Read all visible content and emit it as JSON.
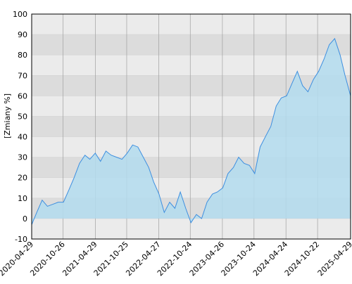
{
  "chart_data": {
    "type": "area",
    "ylabel": "[Zmiany %]",
    "x": [
      "2020-04-29",
      "2020-05-28",
      "2020-06-28",
      "2020-07-28",
      "2020-08-28",
      "2020-09-28",
      "2020-10-28",
      "2020-11-28",
      "2020-12-28",
      "2021-01-28",
      "2021-02-28",
      "2021-03-28",
      "2021-04-28",
      "2021-05-28",
      "2021-06-28",
      "2021-07-28",
      "2021-08-28",
      "2021-09-28",
      "2021-10-28",
      "2021-11-28",
      "2021-12-28",
      "2022-01-28",
      "2022-02-28",
      "2022-03-28",
      "2022-04-28",
      "2022-05-28",
      "2022-06-28",
      "2022-07-28",
      "2022-08-28",
      "2022-09-28",
      "2022-10-28",
      "2022-11-28",
      "2022-12-28",
      "2023-01-28",
      "2023-02-28",
      "2023-03-28",
      "2023-04-28",
      "2023-05-28",
      "2023-06-28",
      "2023-07-28",
      "2023-08-28",
      "2023-09-28",
      "2023-10-28",
      "2023-11-28",
      "2023-12-28",
      "2024-01-28",
      "2024-02-28",
      "2024-03-28",
      "2024-04-28",
      "2024-05-28",
      "2024-06-28",
      "2024-07-28",
      "2024-08-28",
      "2024-09-28",
      "2024-10-28",
      "2024-11-28",
      "2024-12-28",
      "2025-01-28",
      "2025-02-28",
      "2025-03-28",
      "2025-04-29"
    ],
    "values": [
      -3,
      3,
      9,
      6,
      7,
      8,
      8,
      14,
      20,
      27,
      31,
      29,
      32,
      28,
      33,
      31,
      30,
      29,
      32,
      36,
      35,
      30,
      25,
      18,
      12,
      3,
      8,
      5,
      13,
      5,
      -2,
      2,
      0,
      8,
      12,
      13,
      15,
      22,
      25,
      30,
      27,
      26,
      22,
      35,
      40,
      45,
      55,
      59,
      60,
      66,
      72,
      65,
      62,
      68,
      72,
      78,
      85,
      88,
      80,
      70,
      60
    ],
    "color": "#3d8fe0",
    "fill": "#b3dcef",
    "xlim": [
      "2020-04-29",
      "2025-04-29"
    ],
    "xticks": [
      "2020-04-29",
      "2020-10-26",
      "2021-04-29",
      "2021-10-25",
      "2022-04-27",
      "2022-10-24",
      "2023-04-26",
      "2023-10-24",
      "2024-04-24",
      "2024-10-22",
      "2025-04-29"
    ],
    "ylim": [
      -10,
      100
    ],
    "yticks": [
      -10,
      0,
      10,
      20,
      30,
      40,
      50,
      60,
      70,
      80,
      90,
      100
    ],
    "grid": true
  }
}
